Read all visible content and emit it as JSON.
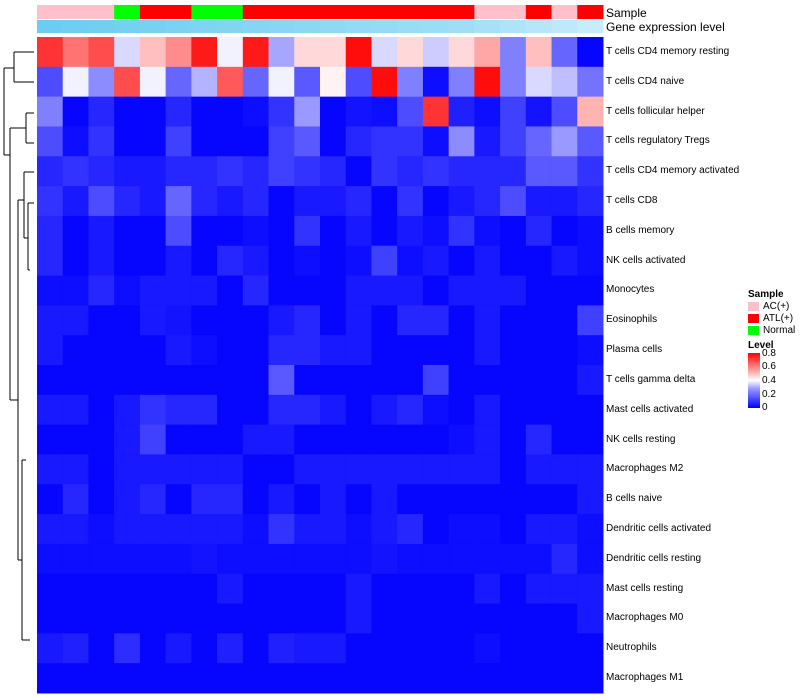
{
  "chart_data": {
    "type": "heatmap",
    "title": "",
    "sample_track_label": "Sample",
    "expression_track_label": "Gene expression level",
    "sample_legend": {
      "title": "Sample",
      "entries": [
        {
          "label": "AC(+)",
          "color": "#FFC0CB"
        },
        {
          "label": "ATL(+)",
          "color": "#FF0000"
        },
        {
          "label": "Normal",
          "color": "#00FF00"
        }
      ]
    },
    "level_legend": {
      "title": "Level",
      "ticks": [
        "0.8",
        "0.6",
        "0.4",
        "0.2",
        "0"
      ],
      "tick_values": [
        0.8,
        0.6,
        0.4,
        0.2,
        0
      ],
      "range": [
        0,
        0.8
      ],
      "colors": {
        "low": "#0000FF",
        "mid": "#FFFFFF",
        "high": "#FF0000"
      }
    },
    "sample_groups": [
      "AC(+)",
      "AC(+)",
      "AC(+)",
      "Normal",
      "ATL(+)",
      "ATL(+)",
      "Normal",
      "Normal",
      "ATL(+)",
      "ATL(+)",
      "ATL(+)",
      "ATL(+)",
      "ATL(+)",
      "ATL(+)",
      "ATL(+)",
      "ATL(+)",
      "ATL(+)",
      "AC(+)",
      "AC(+)",
      "ATL(+)",
      "AC(+)",
      "ATL(+)"
    ],
    "expression_track": [
      0.92,
      0.9,
      0.88,
      0.86,
      0.84,
      0.82,
      0.8,
      0.78,
      0.76,
      0.74,
      0.72,
      0.7,
      0.68,
      0.66,
      0.64,
      0.62,
      0.6,
      0.55,
      0.5,
      0.45,
      0.4,
      0.35
    ],
    "rows": [
      {
        "name": "T cells CD4 memory resting",
        "values": [
          0.72,
          0.62,
          0.68,
          0.34,
          0.5,
          0.58,
          0.76,
          0.38,
          0.76,
          0.26,
          0.46,
          0.46,
          0.78,
          0.34,
          0.46,
          0.32,
          0.46,
          0.54,
          0.2,
          0.5,
          0.16,
          0.01
        ]
      },
      {
        "name": "T cells CD4 naive",
        "values": [
          0.12,
          0.38,
          0.22,
          0.68,
          0.38,
          0.16,
          0.28,
          0.66,
          0.16,
          0.38,
          0.14,
          0.42,
          0.12,
          0.78,
          0.2,
          0.02,
          0.2,
          0.78,
          0.2,
          0.34,
          0.3,
          0.18
        ]
      },
      {
        "name": "T cells follicular helper",
        "values": [
          0.2,
          0.01,
          0.06,
          0.01,
          0.01,
          0.06,
          0.01,
          0.01,
          0.02,
          0.08,
          0.24,
          0.01,
          0.03,
          0.02,
          0.12,
          0.72,
          0.05,
          0.02,
          0.1,
          0.03,
          0.12,
          0.52
        ]
      },
      {
        "name": "T cells regulatory  Tregs",
        "values": [
          0.12,
          0.02,
          0.08,
          0.01,
          0.01,
          0.1,
          0.01,
          0.01,
          0.01,
          0.1,
          0.14,
          0.01,
          0.06,
          0.08,
          0.08,
          0.02,
          0.22,
          0.04,
          0.1,
          0.16,
          0.24,
          0.14
        ]
      },
      {
        "name": "T cells CD4 memory activated",
        "values": [
          0.06,
          0.08,
          0.06,
          0.04,
          0.04,
          0.06,
          0.06,
          0.08,
          0.06,
          0.1,
          0.08,
          0.06,
          0.01,
          0.08,
          0.06,
          0.08,
          0.06,
          0.06,
          0.06,
          0.14,
          0.14,
          0.08
        ]
      },
      {
        "name": "T cells CD8",
        "values": [
          0.08,
          0.04,
          0.12,
          0.06,
          0.04,
          0.16,
          0.06,
          0.04,
          0.06,
          0.01,
          0.04,
          0.04,
          0.06,
          0.01,
          0.08,
          0.01,
          0.04,
          0.06,
          0.12,
          0.04,
          0.04,
          0.06
        ]
      },
      {
        "name": "B cells memory",
        "values": [
          0.06,
          0.01,
          0.04,
          0.01,
          0.01,
          0.12,
          0.01,
          0.01,
          0.02,
          0.01,
          0.08,
          0.01,
          0.04,
          0.01,
          0.04,
          0.02,
          0.08,
          0.02,
          0.01,
          0.06,
          0.01,
          0.02
        ]
      },
      {
        "name": "NK cells activated",
        "values": [
          0.06,
          0.01,
          0.04,
          0.01,
          0.01,
          0.04,
          0.01,
          0.06,
          0.04,
          0.01,
          0.02,
          0.01,
          0.02,
          0.1,
          0.02,
          0.04,
          0.01,
          0.04,
          0.01,
          0.01,
          0.04,
          0.02
        ]
      },
      {
        "name": "Monocytes",
        "values": [
          0.02,
          0.02,
          0.06,
          0.02,
          0.04,
          0.04,
          0.04,
          0.01,
          0.06,
          0.01,
          0.01,
          0.01,
          0.04,
          0.04,
          0.04,
          0.01,
          0.04,
          0.04,
          0.04,
          0.01,
          0.01,
          0.01
        ]
      },
      {
        "name": "Eosinophils",
        "values": [
          0.04,
          0.04,
          0.01,
          0.01,
          0.04,
          0.03,
          0.01,
          0.01,
          0.01,
          0.04,
          0.06,
          0.01,
          0.04,
          0.01,
          0.06,
          0.06,
          0.01,
          0.04,
          0.01,
          0.01,
          0.01,
          0.1
        ]
      },
      {
        "name": "Plasma cells",
        "values": [
          0.04,
          0.01,
          0.01,
          0.01,
          0.01,
          0.04,
          0.02,
          0.01,
          0.01,
          0.06,
          0.06,
          0.04,
          0.04,
          0.01,
          0.01,
          0.01,
          0.01,
          0.04,
          0.01,
          0.01,
          0.01,
          0.02
        ]
      },
      {
        "name": "T cells gamma delta",
        "values": [
          0.01,
          0.01,
          0.01,
          0.01,
          0.01,
          0.01,
          0.01,
          0.01,
          0.01,
          0.14,
          0.01,
          0.01,
          0.01,
          0.01,
          0.01,
          0.1,
          0.01,
          0.01,
          0.01,
          0.01,
          0.01,
          0.04
        ]
      },
      {
        "name": "Mast cells activated",
        "values": [
          0.04,
          0.04,
          0.01,
          0.04,
          0.08,
          0.06,
          0.06,
          0.01,
          0.01,
          0.06,
          0.06,
          0.04,
          0.01,
          0.04,
          0.06,
          0.02,
          0.01,
          0.04,
          0.01,
          0.01,
          0.01,
          0.01
        ]
      },
      {
        "name": "NK cells resting",
        "values": [
          0.01,
          0.01,
          0.01,
          0.04,
          0.1,
          0.01,
          0.01,
          0.01,
          0.04,
          0.04,
          0.01,
          0.01,
          0.01,
          0.01,
          0.01,
          0.01,
          0.02,
          0.04,
          0.01,
          0.06,
          0.01,
          0.01
        ]
      },
      {
        "name": "Macrophages M2",
        "values": [
          0.04,
          0.04,
          0.01,
          0.04,
          0.04,
          0.04,
          0.04,
          0.04,
          0.01,
          0.01,
          0.04,
          0.04,
          0.04,
          0.04,
          0.04,
          0.04,
          0.04,
          0.04,
          0.01,
          0.04,
          0.04,
          0.04
        ]
      },
      {
        "name": "B cells naive",
        "values": [
          0.01,
          0.06,
          0.01,
          0.04,
          0.06,
          0.01,
          0.06,
          0.06,
          0.01,
          0.04,
          0.01,
          0.04,
          0.01,
          0.04,
          0.01,
          0.01,
          0.01,
          0.01,
          0.01,
          0.01,
          0.01,
          0.04
        ]
      },
      {
        "name": "Dendritic cells activated",
        "values": [
          0.04,
          0.04,
          0.02,
          0.04,
          0.04,
          0.04,
          0.04,
          0.04,
          0.02,
          0.08,
          0.04,
          0.04,
          0.02,
          0.04,
          0.06,
          0.01,
          0.02,
          0.02,
          0.01,
          0.04,
          0.04,
          0.02
        ]
      },
      {
        "name": "Dendritic cells resting",
        "values": [
          0.02,
          0.02,
          0.02,
          0.02,
          0.02,
          0.02,
          0.03,
          0.02,
          0.02,
          0.02,
          0.02,
          0.02,
          0.02,
          0.03,
          0.02,
          0.02,
          0.02,
          0.02,
          0.02,
          0.02,
          0.06,
          0.02
        ]
      },
      {
        "name": "Mast cells resting",
        "values": [
          0.01,
          0.01,
          0.01,
          0.01,
          0.01,
          0.01,
          0.01,
          0.04,
          0.01,
          0.01,
          0.01,
          0.01,
          0.04,
          0.01,
          0.01,
          0.01,
          0.01,
          0.04,
          0.01,
          0.04,
          0.04,
          0.04
        ]
      },
      {
        "name": "Macrophages M0",
        "values": [
          0.01,
          0.01,
          0.01,
          0.01,
          0.01,
          0.01,
          0.01,
          0.01,
          0.01,
          0.01,
          0.01,
          0.01,
          0.04,
          0.01,
          0.01,
          0.01,
          0.01,
          0.01,
          0.01,
          0.01,
          0.01,
          0.04
        ]
      },
      {
        "name": "Neutrophils",
        "values": [
          0.04,
          0.05,
          0.01,
          0.07,
          0.01,
          0.04,
          0.01,
          0.05,
          0.01,
          0.05,
          0.04,
          0.04,
          0.01,
          0.01,
          0.01,
          0.01,
          0.01,
          0.02,
          0.01,
          0.01,
          0.01,
          0.01
        ]
      },
      {
        "name": "Macrophages M1",
        "values": [
          0.01,
          0.01,
          0.01,
          0.01,
          0.01,
          0.01,
          0.01,
          0.01,
          0.01,
          0.01,
          0.01,
          0.01,
          0.01,
          0.01,
          0.01,
          0.01,
          0.01,
          0.01,
          0.01,
          0.01,
          0.01,
          0.01
        ]
      }
    ]
  }
}
